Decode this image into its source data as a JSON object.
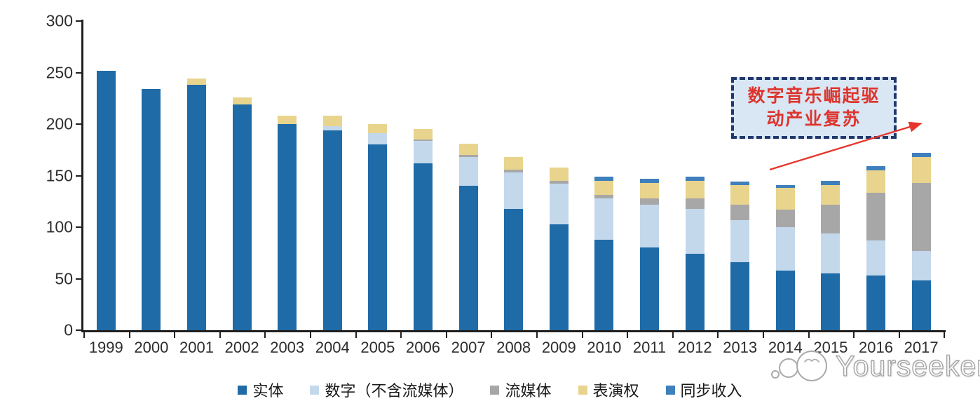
{
  "page": {
    "background": "#ffffff"
  },
  "chart_data": {
    "type": "bar",
    "stacked": true,
    "title": "",
    "xlabel": "",
    "ylabel": "",
    "grid": false,
    "legend_position": "bottom",
    "ylim": [
      0,
      300
    ],
    "yticks": [
      0,
      50,
      100,
      150,
      200,
      250,
      300
    ],
    "categories": [
      "1999",
      "2000",
      "2001",
      "2002",
      "2003",
      "2004",
      "2005",
      "2006",
      "2007",
      "2008",
      "2009",
      "2010",
      "2011",
      "2012",
      "2013",
      "2014",
      "2015",
      "2016",
      "2017"
    ],
    "series": [
      {
        "name": "实体",
        "color": "#1f6ba8",
        "values": [
          252,
          234,
          238,
          219,
          200,
          194,
          180,
          162,
          140,
          118,
          103,
          88,
          80,
          74,
          66,
          58,
          55,
          53,
          48
        ]
      },
      {
        "name": "数字（不含流媒体）",
        "color": "#c4d8ec",
        "values": [
          0,
          0,
          0,
          0,
          0,
          4,
          11,
          22,
          28,
          35,
          39,
          40,
          42,
          44,
          41,
          42,
          39,
          34,
          29
        ]
      },
      {
        "name": "流媒体",
        "color": "#a7a7a7",
        "values": [
          0,
          0,
          0,
          0,
          0,
          0,
          0,
          1,
          2,
          3,
          3,
          3,
          6,
          10,
          15,
          17,
          28,
          46,
          66
        ]
      },
      {
        "name": "表演权",
        "color": "#e9d48d",
        "values": [
          0,
          0,
          6,
          7,
          8,
          10,
          9,
          10,
          11,
          12,
          13,
          14,
          15,
          17,
          19,
          21,
          19,
          22,
          25
        ]
      },
      {
        "name": "同步收入",
        "color": "#3f7fbc",
        "values": [
          0,
          0,
          0,
          0,
          0,
          0,
          0,
          0,
          0,
          0,
          0,
          4,
          4,
          4,
          3,
          3,
          4,
          4,
          4
        ]
      }
    ]
  },
  "annotation": {
    "lines": [
      "数字音乐崛起驱",
      "动产业复苏"
    ],
    "text_color": "#dd352d",
    "box_fill": "#d9e6f4",
    "box_border": "#20386b",
    "arrow_color": "#e6352b"
  },
  "watermark": {
    "text": "Yourseeker"
  }
}
